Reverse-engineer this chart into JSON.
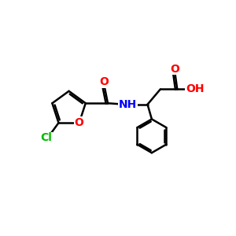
{
  "background_color": "#ffffff",
  "bond_color": "#000000",
  "bond_width": 1.8,
  "atom_colors": {
    "O": "#ff0000",
    "N": "#0000ff",
    "Cl": "#00bb00",
    "C": "#000000"
  },
  "font_size": 10,
  "figsize": [
    3.0,
    3.0
  ],
  "dpi": 100,
  "xlim": [
    0,
    10
  ],
  "ylim": [
    0,
    10
  ]
}
